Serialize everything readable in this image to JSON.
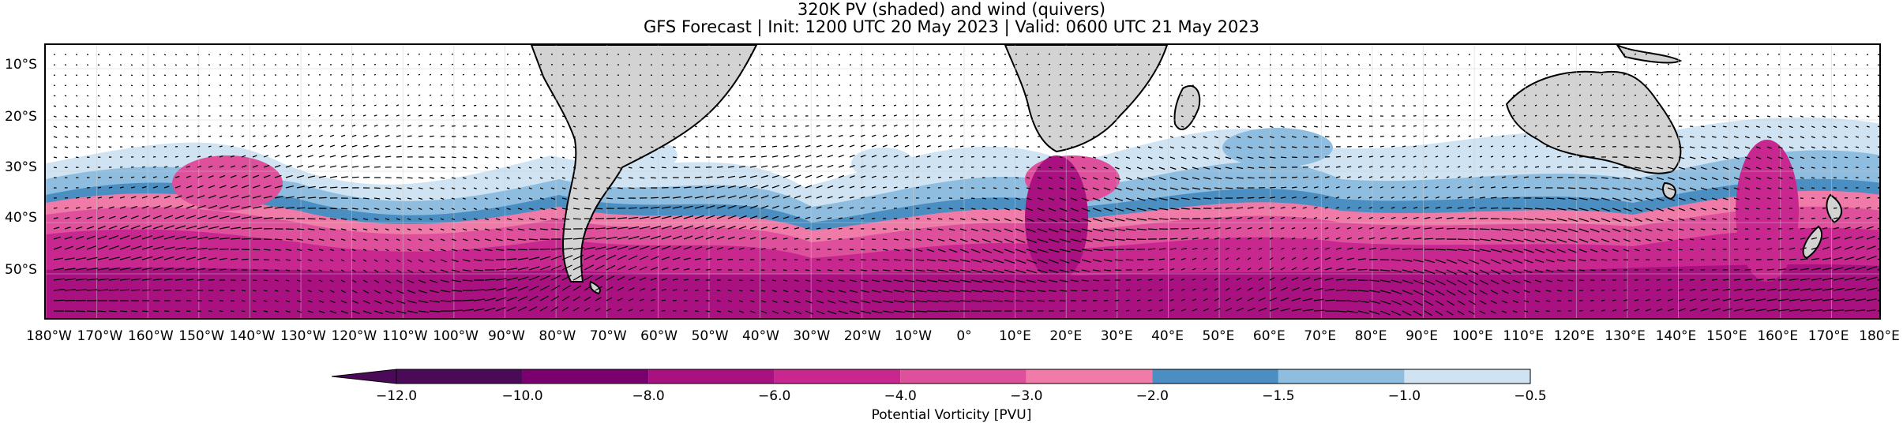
{
  "title_line1": "320K PV (shaded) and wind (quivers)",
  "title_line2": "GFS Forecast | Init: 1200 UTC 20 May 2023 | Valid: 0600 UTC 21 May 2023",
  "lat_labels": [
    "10°S",
    "20°S",
    "30°S",
    "40°S",
    "50°S"
  ],
  "lon_labels": [
    "180°W",
    "170°W",
    "160°W",
    "150°W",
    "140°W",
    "130°W",
    "120°W",
    "110°W",
    "100°W",
    "90°W",
    "80°W",
    "70°W",
    "60°W",
    "50°W",
    "40°W",
    "30°W",
    "20°W",
    "10°W",
    "0°",
    "10°E",
    "20°E",
    "30°E",
    "40°E",
    "50°E",
    "60°E",
    "70°E",
    "80°E",
    "90°E",
    "100°E",
    "110°E",
    "120°E",
    "130°E",
    "140°E",
    "150°E",
    "160°E",
    "170°E",
    "180°E"
  ],
  "colorbar": {
    "ticks": [
      "−12.0",
      "−10.0",
      "−8.0",
      "−6.0",
      "−4.0",
      "−3.0",
      "−2.0",
      "−1.5",
      "−1.0",
      "−0.5"
    ],
    "colors": [
      "#4a0a57",
      "#7a0070",
      "#a8117f",
      "#c7278e",
      "#de4f9c",
      "#f07aa8",
      "#4a8ec2",
      "#8fbde0",
      "#cfe3f2"
    ],
    "label": "Potential Vorticity [PVU]"
  },
  "colors": {
    "land": "#d3d3d3",
    "coast": "#000000",
    "arrow": "#000000"
  }
}
